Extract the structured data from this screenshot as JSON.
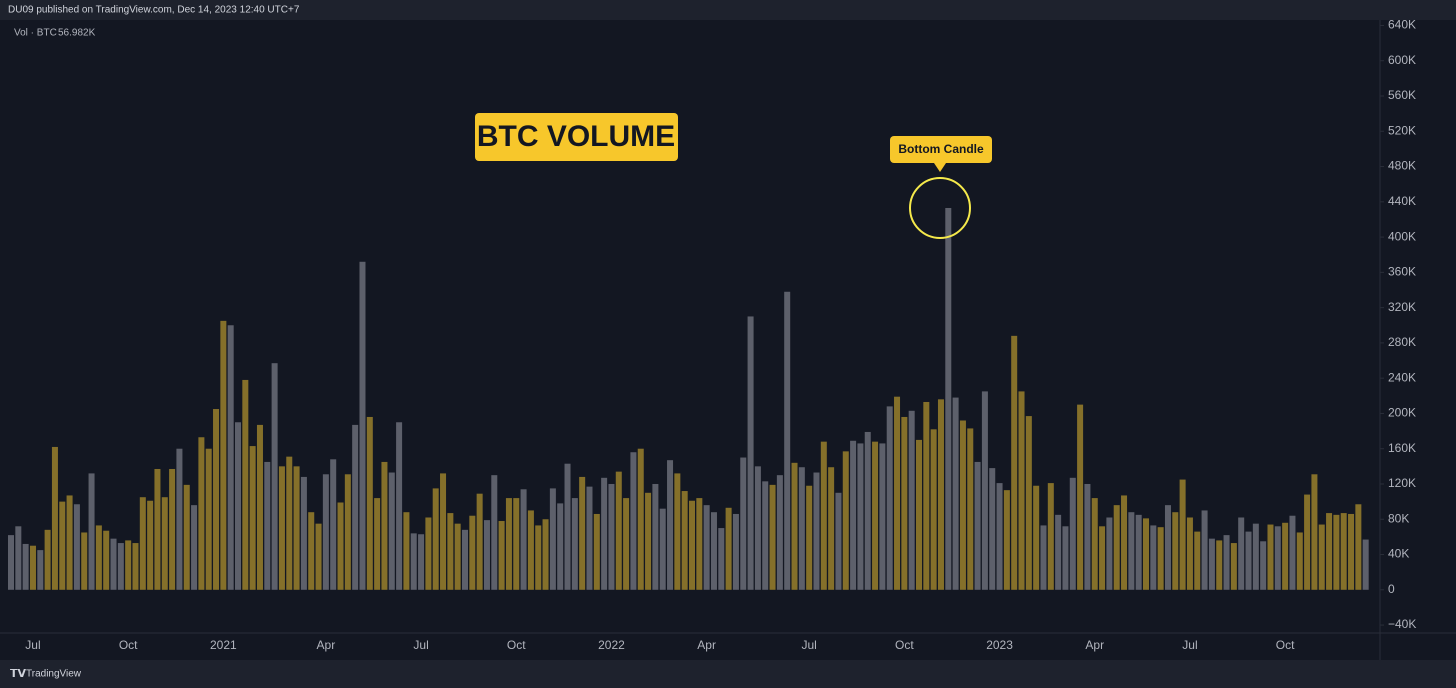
{
  "header": "DU09 published on TradingView.com, Dec 14, 2023 12:40 UTC+7",
  "footer": "TradingView",
  "chart_data": {
    "type": "bar",
    "title": "BTC VOLUME",
    "indicator_label": "Vol · BTC",
    "indicator_value": "56.982K",
    "annotations": [
      "Bottom Candle"
    ],
    "categories": [
      null,
      null,
      null,
      "Jul",
      null,
      null,
      null,
      null,
      null,
      null,
      null,
      null,
      null,
      null,
      null,
      null,
      "Oct",
      null,
      null,
      null,
      null,
      null,
      null,
      null,
      null,
      null,
      null,
      null,
      null,
      "2021",
      null,
      null,
      null,
      null,
      null,
      null,
      null,
      null,
      null,
      null,
      null,
      null,
      null,
      "Apr",
      null,
      null,
      null,
      null,
      null,
      null,
      null,
      null,
      null,
      null,
      null,
      null,
      "Jul",
      null,
      null,
      null,
      null,
      null,
      null,
      null,
      null,
      null,
      null,
      null,
      null,
      "Oct",
      null,
      null,
      null,
      null,
      null,
      null,
      null,
      null,
      null,
      null,
      null,
      null,
      "2022",
      null,
      null,
      null,
      null,
      null,
      null,
      null,
      null,
      null,
      null,
      null,
      null,
      "Apr",
      null,
      null,
      null,
      null,
      null,
      null,
      null,
      null,
      null,
      null,
      null,
      null,
      null,
      "Jul",
      null,
      null,
      null,
      null,
      null,
      null,
      null,
      null,
      null,
      null,
      null,
      null,
      "Oct",
      null,
      null,
      null,
      null,
      null,
      null,
      null,
      null,
      null,
      null,
      null,
      null,
      "2023",
      null,
      null,
      null,
      null,
      null,
      null,
      null,
      null,
      null,
      null,
      null,
      null,
      "Apr",
      null,
      null,
      null,
      null,
      null,
      null,
      null,
      null,
      null,
      null,
      null,
      null,
      "Jul",
      null,
      null,
      null,
      null,
      null,
      null,
      null,
      null,
      null,
      null,
      null,
      null,
      "Oct",
      null,
      null,
      null,
      null,
      null,
      null,
      null,
      null,
      null,
      null,
      null
    ],
    "values": [
      62,
      72,
      52,
      50,
      45,
      68,
      162,
      100,
      107,
      97,
      65,
      132,
      73,
      67,
      58,
      53,
      56,
      53,
      105,
      101,
      137,
      105,
      137,
      160,
      119,
      96,
      173,
      160,
      205,
      305,
      300,
      190,
      238,
      163,
      187,
      145,
      257,
      140,
      151,
      140,
      128,
      88,
      75,
      131,
      148,
      99,
      131,
      187,
      372,
      196,
      104,
      145,
      133,
      190,
      88,
      64,
      63,
      82,
      115,
      132,
      87,
      75,
      68,
      84,
      109,
      79,
      130,
      78,
      104,
      104,
      114,
      90,
      73,
      80,
      115,
      98,
      143,
      104,
      128,
      117,
      86,
      127,
      120,
      134,
      104,
      156,
      160,
      110,
      120,
      92,
      147,
      132,
      112,
      101,
      104,
      96,
      88,
      70,
      93,
      86,
      150,
      310,
      140,
      123,
      119,
      130,
      338,
      144,
      139,
      118,
      133,
      168,
      139,
      110,
      157,
      169,
      166,
      179,
      168,
      166,
      208,
      219,
      196,
      203,
      170,
      213,
      182,
      216,
      433,
      218,
      192,
      183,
      145,
      225,
      138,
      121,
      113,
      288,
      225,
      197,
      118,
      73,
      121,
      85,
      72,
      127,
      210,
      120,
      104,
      72,
      82,
      96,
      107,
      88,
      85,
      81,
      73,
      71,
      96,
      88,
      125,
      82,
      66,
      90,
      58,
      56,
      62,
      53,
      82,
      66,
      75,
      55,
      74,
      72,
      76,
      84,
      65,
      108,
      131,
      74,
      87,
      85,
      87,
      86,
      97,
      56.982
    ],
    "colors": [
      "#5d606b",
      "#5d606b",
      "#5d606b",
      "#85702a",
      "#5d606b",
      "#85702a",
      "#85702a",
      "#85702a",
      "#85702a",
      "#5d606b",
      "#85702a",
      "#5d606b",
      "#85702a",
      "#85702a",
      "#5d606b",
      "#5d606b",
      "#85702a",
      "#85702a",
      "#85702a",
      "#85702a",
      "#85702a",
      "#85702a",
      "#85702a",
      "#5d606b",
      "#85702a",
      "#5d606b",
      "#85702a",
      "#85702a",
      "#85702a",
      "#85702a",
      "#5d606b",
      "#5d606b",
      "#85702a",
      "#85702a",
      "#85702a",
      "#5d606b",
      "#5d606b",
      "#85702a",
      "#85702a",
      "#85702a",
      "#5d606b",
      "#85702a",
      "#85702a",
      "#5d606b",
      "#5d606b",
      "#85702a",
      "#85702a",
      "#5d606b",
      "#5d606b",
      "#85702a",
      "#85702a",
      "#85702a",
      "#5d606b",
      "#5d606b",
      "#85702a",
      "#5d606b",
      "#5d606b",
      "#85702a",
      "#85702a",
      "#85702a",
      "#85702a",
      "#85702a",
      "#5d606b",
      "#85702a",
      "#85702a",
      "#5d606b",
      "#5d606b",
      "#85702a",
      "#85702a",
      "#85702a",
      "#5d606b",
      "#85702a",
      "#85702a",
      "#85702a",
      "#5d606b",
      "#5d606b",
      "#5d606b",
      "#5d606b",
      "#85702a",
      "#5d606b",
      "#85702a",
      "#5d606b",
      "#5d606b",
      "#85702a",
      "#85702a",
      "#5d606b",
      "#85702a",
      "#85702a",
      "#5d606b",
      "#5d606b",
      "#5d606b",
      "#85702a",
      "#85702a",
      "#85702a",
      "#85702a",
      "#5d606b",
      "#5d606b",
      "#5d606b",
      "#85702a",
      "#5d606b",
      "#5d606b",
      "#5d606b",
      "#5d606b",
      "#5d606b",
      "#85702a",
      "#5d606b",
      "#5d606b",
      "#85702a",
      "#5d606b",
      "#85702a",
      "#5d606b",
      "#85702a",
      "#85702a",
      "#5d606b",
      "#85702a",
      "#5d606b",
      "#5d606b",
      "#5d606b",
      "#85702a",
      "#5d606b",
      "#5d606b",
      "#85702a",
      "#85702a",
      "#5d606b",
      "#85702a",
      "#85702a",
      "#85702a",
      "#85702a",
      "#5d606b",
      "#5d606b",
      "#85702a",
      "#85702a",
      "#5d606b",
      "#5d606b",
      "#5d606b",
      "#5d606b",
      "#85702a",
      "#85702a",
      "#85702a",
      "#85702a",
      "#85702a",
      "#5d606b",
      "#85702a",
      "#5d606b",
      "#5d606b",
      "#5d606b",
      "#85702a",
      "#5d606b",
      "#85702a",
      "#85702a",
      "#5d606b",
      "#85702a",
      "#85702a",
      "#5d606b",
      "#5d606b",
      "#85702a",
      "#5d606b",
      "#85702a",
      "#5d606b",
      "#85702a",
      "#85702a",
      "#85702a",
      "#85702a",
      "#5d606b",
      "#5d606b",
      "#85702a",
      "#5d606b",
      "#85702a",
      "#5d606b",
      "#5d606b",
      "#5d606b",
      "#5d606b",
      "#85702a",
      "#5d606b",
      "#85702a",
      "#5d606b",
      "#85702a",
      "#85702a",
      "#85702a",
      "#85702a",
      "#85702a",
      "#85702a",
      "#85702a",
      "#85702a",
      "#85702a",
      "#5d606b"
    ],
    "ylim": [
      -49,
      653
    ],
    "yticks": [
      {
        "value": -40,
        "label": "−40K"
      },
      0,
      {
        "value": 40,
        "label": "40K"
      },
      {
        "value": 80,
        "label": "80K"
      },
      {
        "value": 120,
        "label": "120K"
      },
      {
        "value": 160,
        "label": "160K"
      },
      {
        "value": 200,
        "label": "200K"
      },
      {
        "value": 240,
        "label": "240K"
      },
      {
        "value": 280,
        "label": "280K"
      },
      {
        "value": 320,
        "label": "320K"
      },
      {
        "value": 360,
        "label": "360K"
      },
      {
        "value": 400,
        "label": "400K"
      },
      {
        "value": 440,
        "label": "440K"
      },
      {
        "value": 480,
        "label": "480K"
      },
      {
        "value": 520,
        "label": "520K"
      },
      {
        "value": 560,
        "label": "560K"
      },
      {
        "value": 600,
        "label": "600K"
      },
      {
        "value": 640,
        "label": "640K"
      }
    ],
    "grid": false
  }
}
